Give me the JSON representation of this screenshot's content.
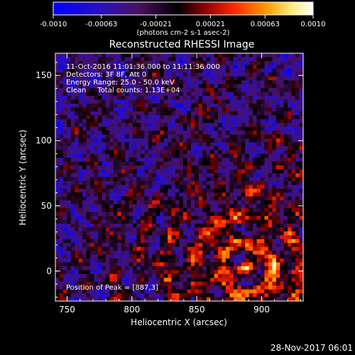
{
  "chart_data": {
    "type": "heatmap",
    "title": "Reconstructed RHESSI Image",
    "xlabel": "Heliocentric X (arcsec)",
    "ylabel": "Heliocentric Y (arcsec)",
    "xlim": [
      741,
      932
    ],
    "ylim": [
      -23,
      167
    ],
    "x_ticks": [
      750,
      800,
      850,
      900
    ],
    "y_ticks": [
      0,
      50,
      100,
      150
    ],
    "colorbar": {
      "min": -0.001,
      "max": 0.001,
      "ticks": [
        "-0.0010",
        "-0.00063",
        "-0.00021",
        "0.00021",
        "0.00063",
        "0.0010"
      ],
      "units": "(photons cm-2 s-1 asec-2)",
      "colormap": [
        "#0000ff",
        "#5a1fa0",
        "#3a0a30",
        "#000000",
        "#8b0000",
        "#ff3000",
        "#ffb000",
        "#ffffc0",
        "#ffffff"
      ]
    },
    "annotations": [
      "11-Oct-2016 11:01:36.000 to 11:11:36.000",
      "Detectors: 3F 8F, Att 0",
      "Energy Range: 25.0 - 50.0 keV",
      "Clean     Total counts: 1.13E+04"
    ],
    "peak_label": "Position of Peak = [887,3]",
    "peak": {
      "x": 887,
      "y": 3
    },
    "grid": false
  },
  "footer": {
    "timestamp": "28-Nov-2017 06:01"
  }
}
